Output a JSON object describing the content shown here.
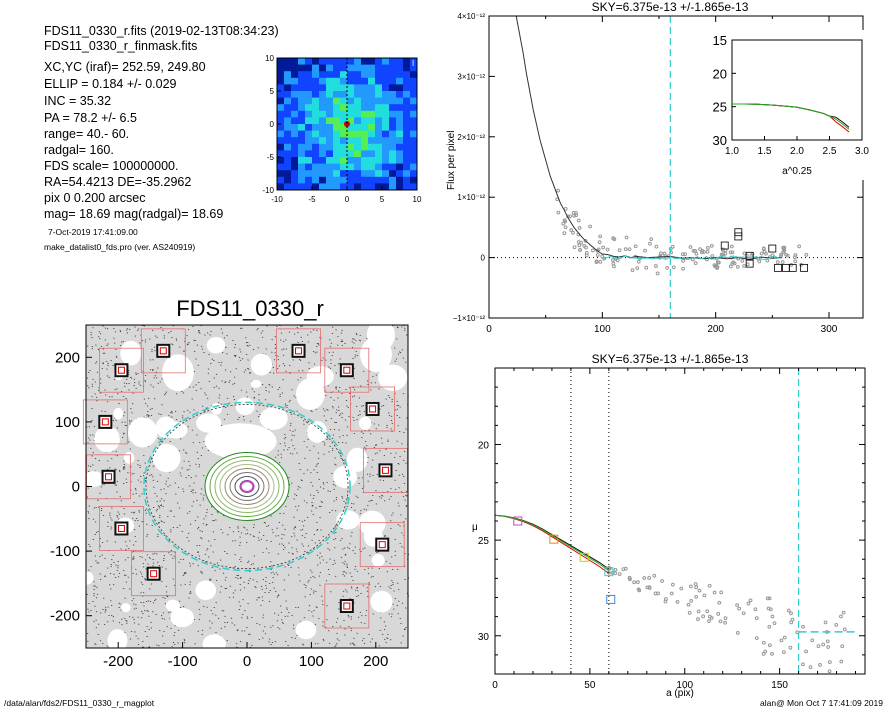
{
  "header": {
    "line1": "FDS11_0330_r.fits  (2019-02-13T08:34:23)",
    "line2": "FDS11_0330_r_finmask.fits"
  },
  "params": [
    "XC,YC (iraf)=   252.59, 249.80",
    "ELLIP = 0.184 +/- 0.029",
    "INC   = 35.32",
    "PA    = 78.2 +/-   6.5",
    "range=  40.-  60.",
    "radgal=  160.",
    "FDS scale=  100000000.",
    "RA=54.4213  DE=-35.2962",
    "pix 0 0.200 arcsec",
    "mag=  18.69  mag(radgal)=  18.69"
  ],
  "run_date": "7-Oct-2019 17:41:09.00",
  "program": "make_datalist0_fds.pro (ver. AS240919)",
  "footer": {
    "left": "/data/alan/fds2/FDS11_0330_r_magplot",
    "right": "alan@  Mon Oct  7 17:41:09 2019"
  },
  "colors": {
    "cyan": "#33cccc",
    "red": "#e00000",
    "green": "#22aa22",
    "contour_green": "#88ff00",
    "contour_blue": "#1144ff",
    "magenta": "#cc44cc",
    "orange": "#ee8800",
    "yellow": "#cccc00",
    "blue": "#4488dd",
    "gray": "#999999"
  },
  "chart_data": [
    {
      "type": "heatmap",
      "id": "velocity-map",
      "xlim": [
        -10,
        10
      ],
      "ylim": [
        -10,
        10
      ],
      "xticks": [
        "-10",
        "-5",
        "0",
        "5",
        "10"
      ],
      "yticks": [
        "10",
        "5",
        "0",
        "-5",
        "-10"
      ],
      "corner_label": "I"
    },
    {
      "type": "scatter",
      "id": "image-panel",
      "title": "FDS11_0330_r",
      "xlim": [
        -250,
        250
      ],
      "ylim": [
        -250,
        250
      ],
      "xticks": [
        "-200",
        "-100",
        "0",
        "100",
        "200"
      ],
      "yticks": [
        "200",
        "100",
        "0",
        "-100",
        "-200"
      ],
      "mask_boxes": [
        [
          -130,
          210
        ],
        [
          -195,
          180
        ],
        [
          -220,
          100
        ],
        [
          -215,
          15
        ],
        [
          -195,
          -65
        ],
        [
          -145,
          -135
        ],
        [
          80,
          210
        ],
        [
          155,
          180
        ],
        [
          195,
          120
        ],
        [
          215,
          25
        ],
        [
          210,
          -90
        ],
        [
          155,
          -185
        ]
      ],
      "ellipse_semi_major": 160,
      "ellipticity": 0.184
    },
    {
      "type": "line",
      "id": "sky-profile",
      "title": "SKY=6.375e-13 +/-1.865e-13",
      "ylabel": "Flux per pixel",
      "xlim": [
        0,
        330
      ],
      "ylim": [
        -1e-12,
        4e-12
      ],
      "xticks": [
        "0",
        "100",
        "200",
        "300"
      ],
      "xtick_values": [
        0,
        50,
        100,
        150,
        200,
        250,
        300
      ],
      "ytick_labels": [
        "4×10⁻¹²",
        "3×10⁻¹²",
        "2×10⁻¹²",
        "1×10⁻¹²",
        "0",
        "−1×10⁻¹²"
      ],
      "ytick_values": [
        4e-12,
        3e-12,
        2e-12,
        1e-12,
        0,
        -1e-12
      ],
      "vline_x": 160,
      "series": [
        {
          "x": [
            24,
            27,
            30,
            33,
            36,
            39,
            42,
            45,
            48,
            51,
            54,
            57,
            60,
            63,
            66,
            70,
            75,
            80,
            85,
            90,
            95,
            100,
            105,
            110,
            115,
            120,
            125,
            130,
            140,
            150,
            160,
            170,
            180,
            190,
            200,
            210,
            220,
            230,
            240,
            250,
            258
          ],
          "y": [
            4e-12,
            3.7e-12,
            3.4e-12,
            3.05e-12,
            2.75e-12,
            2.45e-12,
            2.2e-12,
            1.95e-12,
            1.75e-12,
            1.55e-12,
            1.35e-12,
            1.2e-12,
            1.05e-12,
            9e-13,
            8e-13,
            6.5e-13,
            5e-13,
            3.8e-13,
            2.8e-13,
            2e-13,
            1.2e-13,
            6e-14,
            5e-14,
            2e-14,
            1e-14,
            3e-14,
            0.0,
            2e-14,
            0.0,
            1e-14,
            2e-14,
            -1e-14,
            0.0,
            -2e-14,
            0.0,
            -2e-14,
            0.0,
            -3e-14,
            1e-14,
            -1e-14,
            0.0
          ]
        }
      ],
      "square_points": [
        [
          220,
          3.5e-13
        ],
        [
          220,
          4.2e-13
        ],
        [
          208,
          2e-13
        ],
        [
          230,
          3e-14
        ],
        [
          250,
          1.5e-13
        ],
        [
          255,
          -1.7e-13
        ],
        [
          262,
          -1.7e-13
        ],
        [
          268,
          -1.7e-13
        ],
        [
          278,
          -1.7e-13
        ],
        [
          230,
          -1e-13
        ]
      ]
    },
    {
      "type": "line",
      "id": "inset-profile",
      "xlabel": "a^0.25",
      "xlim": [
        1.0,
        3.0
      ],
      "ylim": [
        30,
        15
      ],
      "xticks": [
        "1.0",
        "1.5",
        "2.0",
        "2.5",
        "3.0"
      ],
      "yticks": [
        "15",
        "20",
        "25",
        "30"
      ],
      "x": [
        1.0,
        1.2,
        1.4,
        1.6,
        1.8,
        2.0,
        2.2,
        2.4,
        2.5,
        2.6,
        2.7,
        2.8
      ],
      "y": [
        24.6,
        24.6,
        24.65,
        24.75,
        24.9,
        25.1,
        25.5,
        26.0,
        26.4,
        26.9,
        27.6,
        28.4
      ]
    },
    {
      "type": "line",
      "id": "mu-profile",
      "title": "SKY=6.375e-13 +/-1.865e-13",
      "xlabel": "a (pix)",
      "ylabel": "μ",
      "xlim": [
        0,
        195
      ],
      "ylim": [
        32,
        16
      ],
      "xticks": [
        "0",
        "50",
        "100",
        "150"
      ],
      "yticks": [
        "20",
        "25",
        "30"
      ],
      "vlines_dotted": [
        40,
        60
      ],
      "vline_cyan": 160,
      "x": [
        0,
        5,
        10,
        15,
        20,
        25,
        30,
        35,
        40,
        45,
        50,
        55,
        60
      ],
      "y": [
        23.7,
        23.75,
        23.85,
        24.0,
        24.2,
        24.45,
        24.75,
        25.05,
        25.35,
        25.65,
        25.95,
        26.25,
        26.6
      ],
      "squares": [
        {
          "x": 12,
          "y": 24.0,
          "color": "magenta"
        },
        {
          "x": 31,
          "y": 24.95,
          "color": "orange"
        },
        {
          "x": 47,
          "y": 25.9,
          "color": "yellow"
        },
        {
          "x": 60,
          "y": 26.65,
          "color": "cyan"
        },
        {
          "x": 61,
          "y": 28.1,
          "color": "blue"
        }
      ],
      "sky_level": 29.8
    }
  ]
}
